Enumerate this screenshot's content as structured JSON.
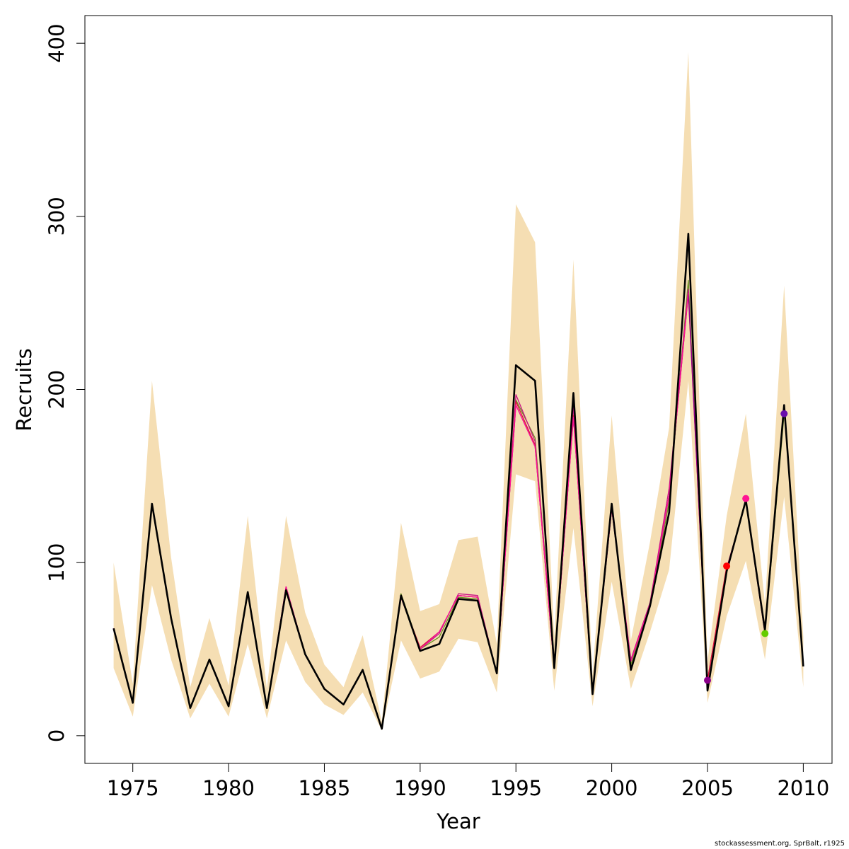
{
  "footer": "stockassessment.org, SprBalt, r1925",
  "chart_data": {
    "type": "line",
    "xlabel": "Year",
    "ylabel": "Recruits",
    "xlim": [
      1972.5,
      2011.5
    ],
    "ylim": [
      -16,
      416
    ],
    "x_ticks": [
      1975,
      1980,
      1985,
      1990,
      1995,
      2000,
      2005,
      2010
    ],
    "y_ticks": [
      0,
      100,
      200,
      300,
      400
    ],
    "grid": false,
    "colors": {
      "band": "#f5deb3",
      "main": "#000000",
      "retro": [
        "#6b8e23",
        "#c71585",
        "#dc143c",
        "#8b008b",
        "#ff1493"
      ],
      "points": [
        "#8b008b",
        "#ff0000",
        "#ff1493",
        "#66cc00",
        "#6a0dad"
      ]
    },
    "x": [
      1974,
      1975,
      1976,
      1977,
      1978,
      1979,
      1980,
      1981,
      1982,
      1983,
      1984,
      1985,
      1986,
      1987,
      1988,
      1989,
      1990,
      1991,
      1992,
      1993,
      1994,
      1995,
      1996,
      1997,
      1998,
      1999,
      2000,
      2001,
      2002,
      2003,
      2004,
      2005,
      2006,
      2007,
      2008,
      2009,
      2010
    ],
    "band_lower": [
      39,
      11,
      87,
      44,
      10,
      30,
      11,
      53,
      10,
      55,
      31,
      18,
      12,
      25,
      3,
      55,
      33,
      37,
      56,
      54,
      25,
      151,
      147,
      26,
      120,
      17,
      89,
      27,
      60,
      96,
      205,
      19,
      69,
      101,
      44,
      138,
      28
    ],
    "band_upper": [
      100,
      30,
      205,
      103,
      28,
      68,
      29,
      127,
      27,
      127,
      71,
      41,
      28,
      58,
      8,
      123,
      72,
      76,
      113,
      115,
      53,
      307,
      285,
      57,
      275,
      35,
      185,
      55,
      112,
      178,
      395,
      43,
      127,
      186,
      76,
      260,
      57
    ],
    "series": [
      {
        "values": [
          62,
          19,
          134,
          68,
          16,
          44,
          17,
          83,
          16,
          84,
          47,
          27,
          18,
          38,
          4,
          81,
          49,
          53,
          79,
          78,
          36,
          214,
          205,
          39,
          198,
          24,
          134,
          38,
          75,
          129,
          290,
          26,
          95,
          136,
          61,
          191,
          40
        ]
      },
      {
        "values": [
          62,
          19,
          134,
          68,
          16,
          44,
          17,
          83,
          16,
          85,
          47,
          27,
          18,
          38,
          4,
          82,
          50,
          57,
          80,
          79,
          36,
          194,
          172,
          40,
          192,
          25,
          133,
          41,
          75,
          135,
          263,
          32,
          96,
          136,
          59,
          186,
          null
        ]
      },
      {
        "values": [
          62,
          19,
          134,
          68,
          16,
          44,
          17,
          82,
          16,
          84,
          47,
          27,
          18,
          38,
          4,
          80,
          50,
          59,
          82,
          81,
          36,
          197,
          170,
          40,
          190,
          24,
          132,
          44,
          77,
          143,
          258,
          32,
          97,
          135,
          59,
          null,
          null
        ]
      },
      {
        "values": [
          62,
          19,
          133,
          68,
          16,
          44,
          17,
          82,
          16,
          86,
          47,
          27,
          18,
          38,
          4,
          80,
          51,
          60,
          81,
          80,
          36,
          193,
          168,
          39,
          185,
          24,
          131,
          43,
          76,
          139,
          255,
          32,
          98,
          null,
          null,
          null,
          null
        ]
      },
      {
        "values": [
          62,
          19,
          133,
          68,
          16,
          44,
          17,
          82,
          16,
          86,
          47,
          27,
          18,
          38,
          4,
          80,
          50,
          60,
          81,
          80,
          36,
          191,
          167,
          39,
          184,
          24,
          131,
          43,
          76,
          139,
          256,
          33,
          null,
          null,
          null,
          null,
          null
        ]
      },
      {
        "values": [
          62,
          19,
          133,
          68,
          16,
          44,
          17,
          82,
          16,
          86,
          47,
          27,
          18,
          38,
          4,
          80,
          50,
          60,
          81,
          80,
          36,
          191,
          167,
          39,
          184,
          24,
          131,
          43,
          76,
          139,
          256,
          null,
          null,
          null,
          null,
          null,
          null
        ]
      }
    ],
    "points": [
      {
        "x": 2005,
        "y": 32
      },
      {
        "x": 2006,
        "y": 98
      },
      {
        "x": 2007,
        "y": 137
      },
      {
        "x": 2008,
        "y": 59
      },
      {
        "x": 2009,
        "y": 186
      }
    ]
  }
}
